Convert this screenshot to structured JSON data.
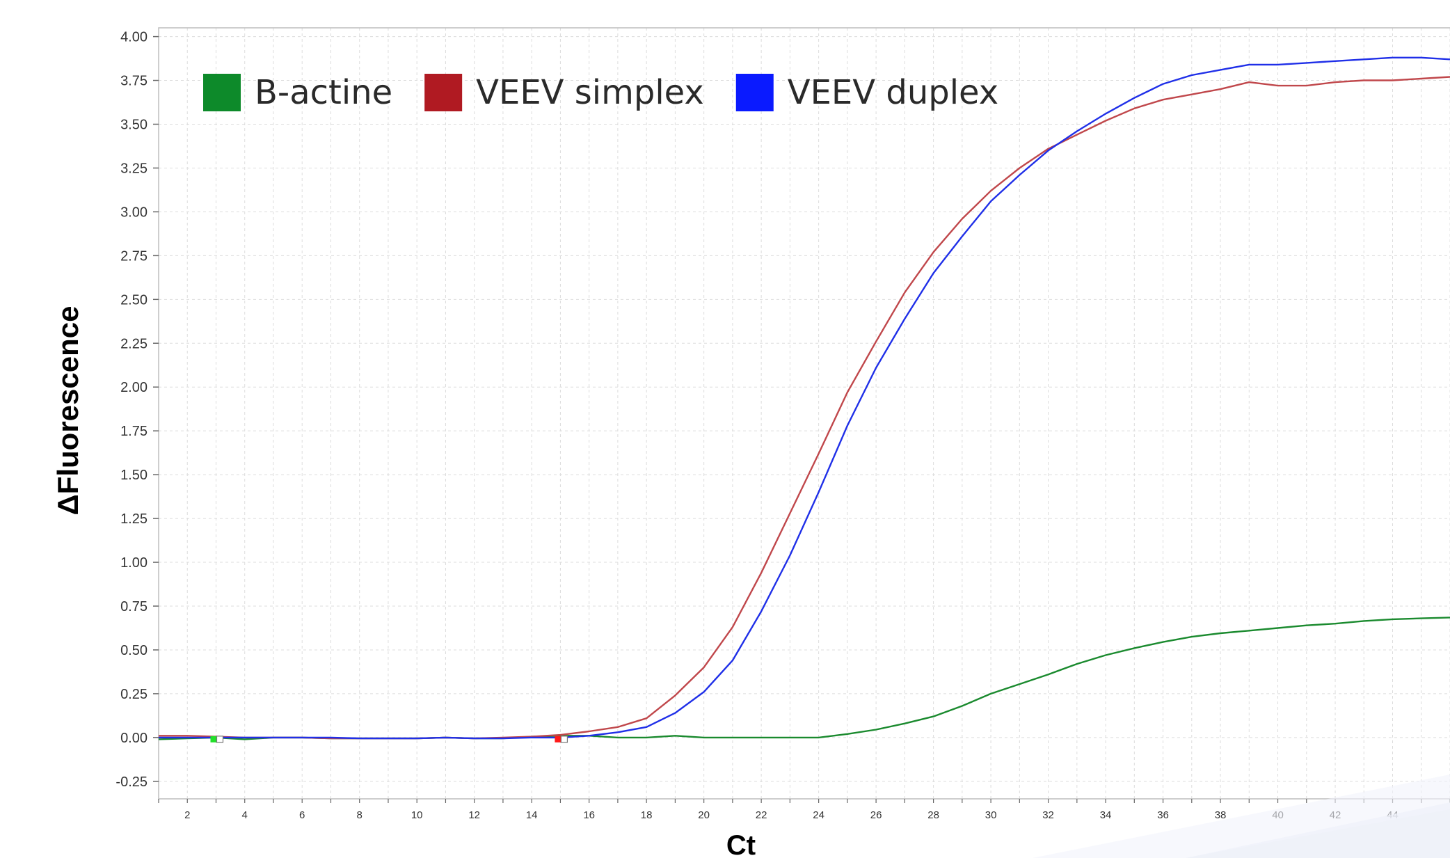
{
  "chart_data": {
    "type": "line",
    "title": "",
    "xlabel": "Ct",
    "ylabel": "ΔFluorescence",
    "xlim": [
      1,
      46
    ],
    "ylim": [
      -0.35,
      4.05
    ],
    "x_ticks": [
      2,
      4,
      6,
      8,
      10,
      12,
      14,
      16,
      18,
      20,
      22,
      24,
      26,
      28,
      30,
      32,
      34,
      36,
      38,
      40,
      42,
      44
    ],
    "x_tick_labels": [
      "2",
      "4",
      "6",
      "8",
      "10",
      "12",
      "14",
      "16",
      "18",
      "20",
      "22",
      "24",
      "26",
      "28",
      "30",
      "32",
      "34",
      "36",
      "38",
      "40",
      "42",
      "44"
    ],
    "y_ticks": [
      -0.25,
      0,
      0.25,
      0.5,
      0.75,
      1.0,
      1.25,
      1.5,
      1.75,
      2.0,
      2.25,
      2.5,
      2.75,
      3.0,
      3.25,
      3.5,
      3.75,
      4.0
    ],
    "y_tick_labels": [
      "-0.25",
      "0.00",
      "0.25",
      "0.50",
      "0.75",
      "1.00",
      "1.25",
      "1.50",
      "1.75",
      "2.00",
      "2.25",
      "2.50",
      "2.75",
      "3.00",
      "3.25",
      "3.50",
      "3.75",
      "4.00"
    ],
    "grid": true,
    "legend_position": "top-left",
    "series": [
      {
        "name": "B-actine",
        "color": "#1a8a2e",
        "legend_color": "#0d8a2a",
        "x": [
          1,
          2,
          3,
          4,
          5,
          6,
          7,
          8,
          9,
          10,
          11,
          12,
          13,
          14,
          15,
          16,
          17,
          18,
          19,
          20,
          21,
          22,
          23,
          24,
          25,
          26,
          27,
          28,
          29,
          30,
          31,
          32,
          33,
          34,
          35,
          36,
          37,
          38,
          39,
          40,
          41,
          42,
          43,
          44,
          45,
          46
        ],
        "y": [
          -0.01,
          -0.005,
          0.0,
          -0.01,
          0.0,
          0.0,
          -0.005,
          -0.005,
          -0.005,
          -0.005,
          0.0,
          -0.005,
          -0.005,
          0.005,
          0.01,
          0.01,
          0.0,
          0.0,
          0.01,
          0.0,
          0.0,
          0.0,
          0.0,
          0.0,
          0.02,
          0.045,
          0.08,
          0.12,
          0.18,
          0.25,
          0.305,
          0.36,
          0.42,
          0.47,
          0.51,
          0.545,
          0.575,
          0.595,
          0.61,
          0.625,
          0.64,
          0.65,
          0.665,
          0.675,
          0.68,
          0.685
        ]
      },
      {
        "name": "VEEV simplex",
        "color": "#c0474b",
        "legend_color": "#b01a22",
        "x": [
          1,
          2,
          3,
          4,
          5,
          6,
          7,
          8,
          9,
          10,
          11,
          12,
          13,
          14,
          15,
          16,
          17,
          18,
          19,
          20,
          21,
          22,
          23,
          24,
          25,
          26,
          27,
          28,
          29,
          30,
          31,
          32,
          33,
          34,
          35,
          36,
          37,
          38,
          39,
          40,
          41,
          42,
          43,
          44,
          45,
          46
        ],
        "y": [
          0.01,
          0.01,
          0.005,
          0.0,
          0.0,
          0.0,
          -0.005,
          -0.005,
          -0.005,
          -0.005,
          0.0,
          -0.005,
          0.0,
          0.005,
          0.015,
          0.035,
          0.06,
          0.11,
          0.24,
          0.4,
          0.63,
          0.94,
          1.28,
          1.62,
          1.97,
          2.26,
          2.54,
          2.77,
          2.96,
          3.12,
          3.25,
          3.36,
          3.44,
          3.52,
          3.59,
          3.64,
          3.67,
          3.7,
          3.74,
          3.72,
          3.72,
          3.74,
          3.75,
          3.75,
          3.76,
          3.77
        ]
      },
      {
        "name": "VEEV duplex",
        "color": "#1f2fe8",
        "legend_color": "#0a1aff",
        "x": [
          1,
          2,
          3,
          4,
          5,
          6,
          7,
          8,
          9,
          10,
          11,
          12,
          13,
          14,
          15,
          16,
          17,
          18,
          19,
          20,
          21,
          22,
          23,
          24,
          25,
          26,
          27,
          28,
          29,
          30,
          31,
          32,
          33,
          34,
          35,
          36,
          37,
          38,
          39,
          40,
          41,
          42,
          43,
          44,
          45,
          46
        ],
        "y": [
          0.0,
          0.0,
          0.0,
          0.0,
          0.0,
          0.0,
          0.0,
          -0.005,
          -0.005,
          -0.005,
          0.0,
          -0.005,
          -0.005,
          0.0,
          0.0,
          0.01,
          0.03,
          0.06,
          0.14,
          0.26,
          0.44,
          0.72,
          1.04,
          1.4,
          1.78,
          2.11,
          2.39,
          2.65,
          2.86,
          3.06,
          3.21,
          3.35,
          3.46,
          3.56,
          3.65,
          3.73,
          3.78,
          3.81,
          3.84,
          3.84,
          3.85,
          3.86,
          3.87,
          3.88,
          3.88,
          3.87
        ]
      }
    ],
    "threshold_markers": [
      {
        "x": 3,
        "y": 0.0,
        "color": "#22e02a"
      },
      {
        "x": 15,
        "y": 0.0,
        "color": "#ff1a1a"
      }
    ]
  }
}
